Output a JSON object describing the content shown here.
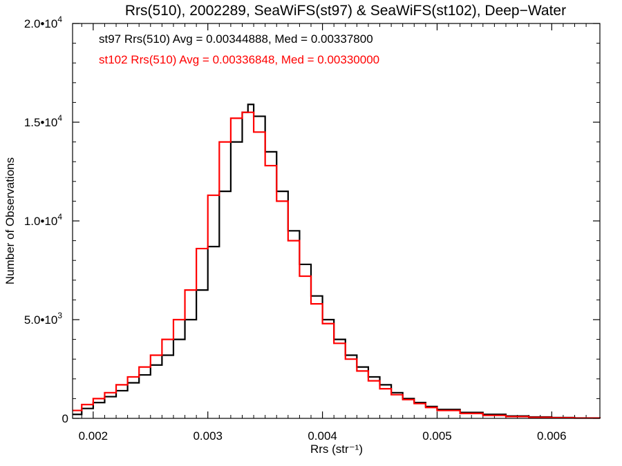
{
  "chart_data": {
    "type": "line",
    "title": "Rrs(510), 2002289, SeaWiFS(st97) & SeaWiFS(st102), Deep−Water",
    "xlabel": "Rrs (str⁻¹)",
    "ylabel": "Number of Observations",
    "xlim": [
      0.00182,
      0.00642
    ],
    "ylim": [
      0,
      20000
    ],
    "grid": false,
    "legend_position": "top-left",
    "x_ticks": [
      0.002,
      0.003,
      0.004,
      0.005,
      0.006
    ],
    "x_tick_labels": [
      "0.002",
      "0.003",
      "0.004",
      "0.005",
      "0.006"
    ],
    "y_ticks": [
      0,
      5000,
      10000,
      15000,
      20000
    ],
    "y_tick_labels": [
      {
        "mantissa": "0",
        "exponent": ""
      },
      {
        "mantissa": "5.0•10",
        "exponent": "3"
      },
      {
        "mantissa": "1.0•10",
        "exponent": "4"
      },
      {
        "mantissa": "1.5•10",
        "exponent": "4"
      },
      {
        "mantissa": "2.0•10",
        "exponent": "4"
      }
    ],
    "annotations": [
      {
        "text": "st97 Rrs(510) Avg = 0.00344888, Med = 0.00337800",
        "color": "#000000"
      },
      {
        "text": "st102 Rrs(510) Avg = 0.00336848, Med = 0.00330000",
        "color": "#ff0000"
      }
    ],
    "series": [
      {
        "color": "#000000",
        "x": [
          0.00182,
          0.0019,
          0.002,
          0.0021,
          0.0022,
          0.0023,
          0.0024,
          0.0025,
          0.0026,
          0.0027,
          0.0028,
          0.0029,
          0.003,
          0.0031,
          0.0032,
          0.0033,
          0.00335,
          0.0034,
          0.0035,
          0.0036,
          0.0037,
          0.0038,
          0.0039,
          0.004,
          0.0041,
          0.0042,
          0.0043,
          0.0044,
          0.0045,
          0.0046,
          0.0047,
          0.0048,
          0.0049,
          0.005,
          0.0052,
          0.0054,
          0.0056,
          0.0058,
          0.006,
          0.0062,
          0.00642
        ],
        "y": [
          200,
          500,
          800,
          1100,
          1400,
          1800,
          2200,
          2700,
          3200,
          4000,
          5000,
          6500,
          8700,
          11500,
          14000,
          15500,
          15900,
          15300,
          13500,
          11500,
          9500,
          7800,
          6200,
          5000,
          4000,
          3200,
          2600,
          2100,
          1700,
          1300,
          1000,
          800,
          600,
          450,
          300,
          200,
          120,
          70,
          40,
          20,
          10
        ]
      },
      {
        "color": "#ff0000",
        "x": [
          0.00182,
          0.0019,
          0.002,
          0.0021,
          0.0022,
          0.0023,
          0.0024,
          0.0025,
          0.0026,
          0.0027,
          0.0028,
          0.0029,
          0.003,
          0.0031,
          0.0032,
          0.0033,
          0.0034,
          0.0035,
          0.0036,
          0.0037,
          0.0038,
          0.0039,
          0.004,
          0.0041,
          0.0042,
          0.0043,
          0.0044,
          0.0045,
          0.0046,
          0.0047,
          0.0048,
          0.0049,
          0.005,
          0.0052,
          0.0054,
          0.0056,
          0.0058,
          0.006,
          0.0062,
          0.00642
        ],
        "y": [
          400,
          700,
          1000,
          1300,
          1700,
          2100,
          2600,
          3200,
          4000,
          5000,
          6500,
          8600,
          11300,
          14000,
          15200,
          15500,
          14500,
          12800,
          11000,
          9000,
          7200,
          5800,
          4800,
          3800,
          3000,
          2400,
          1900,
          1500,
          1200,
          950,
          750,
          550,
          400,
          250,
          150,
          90,
          50,
          30,
          15,
          8
        ]
      }
    ]
  }
}
